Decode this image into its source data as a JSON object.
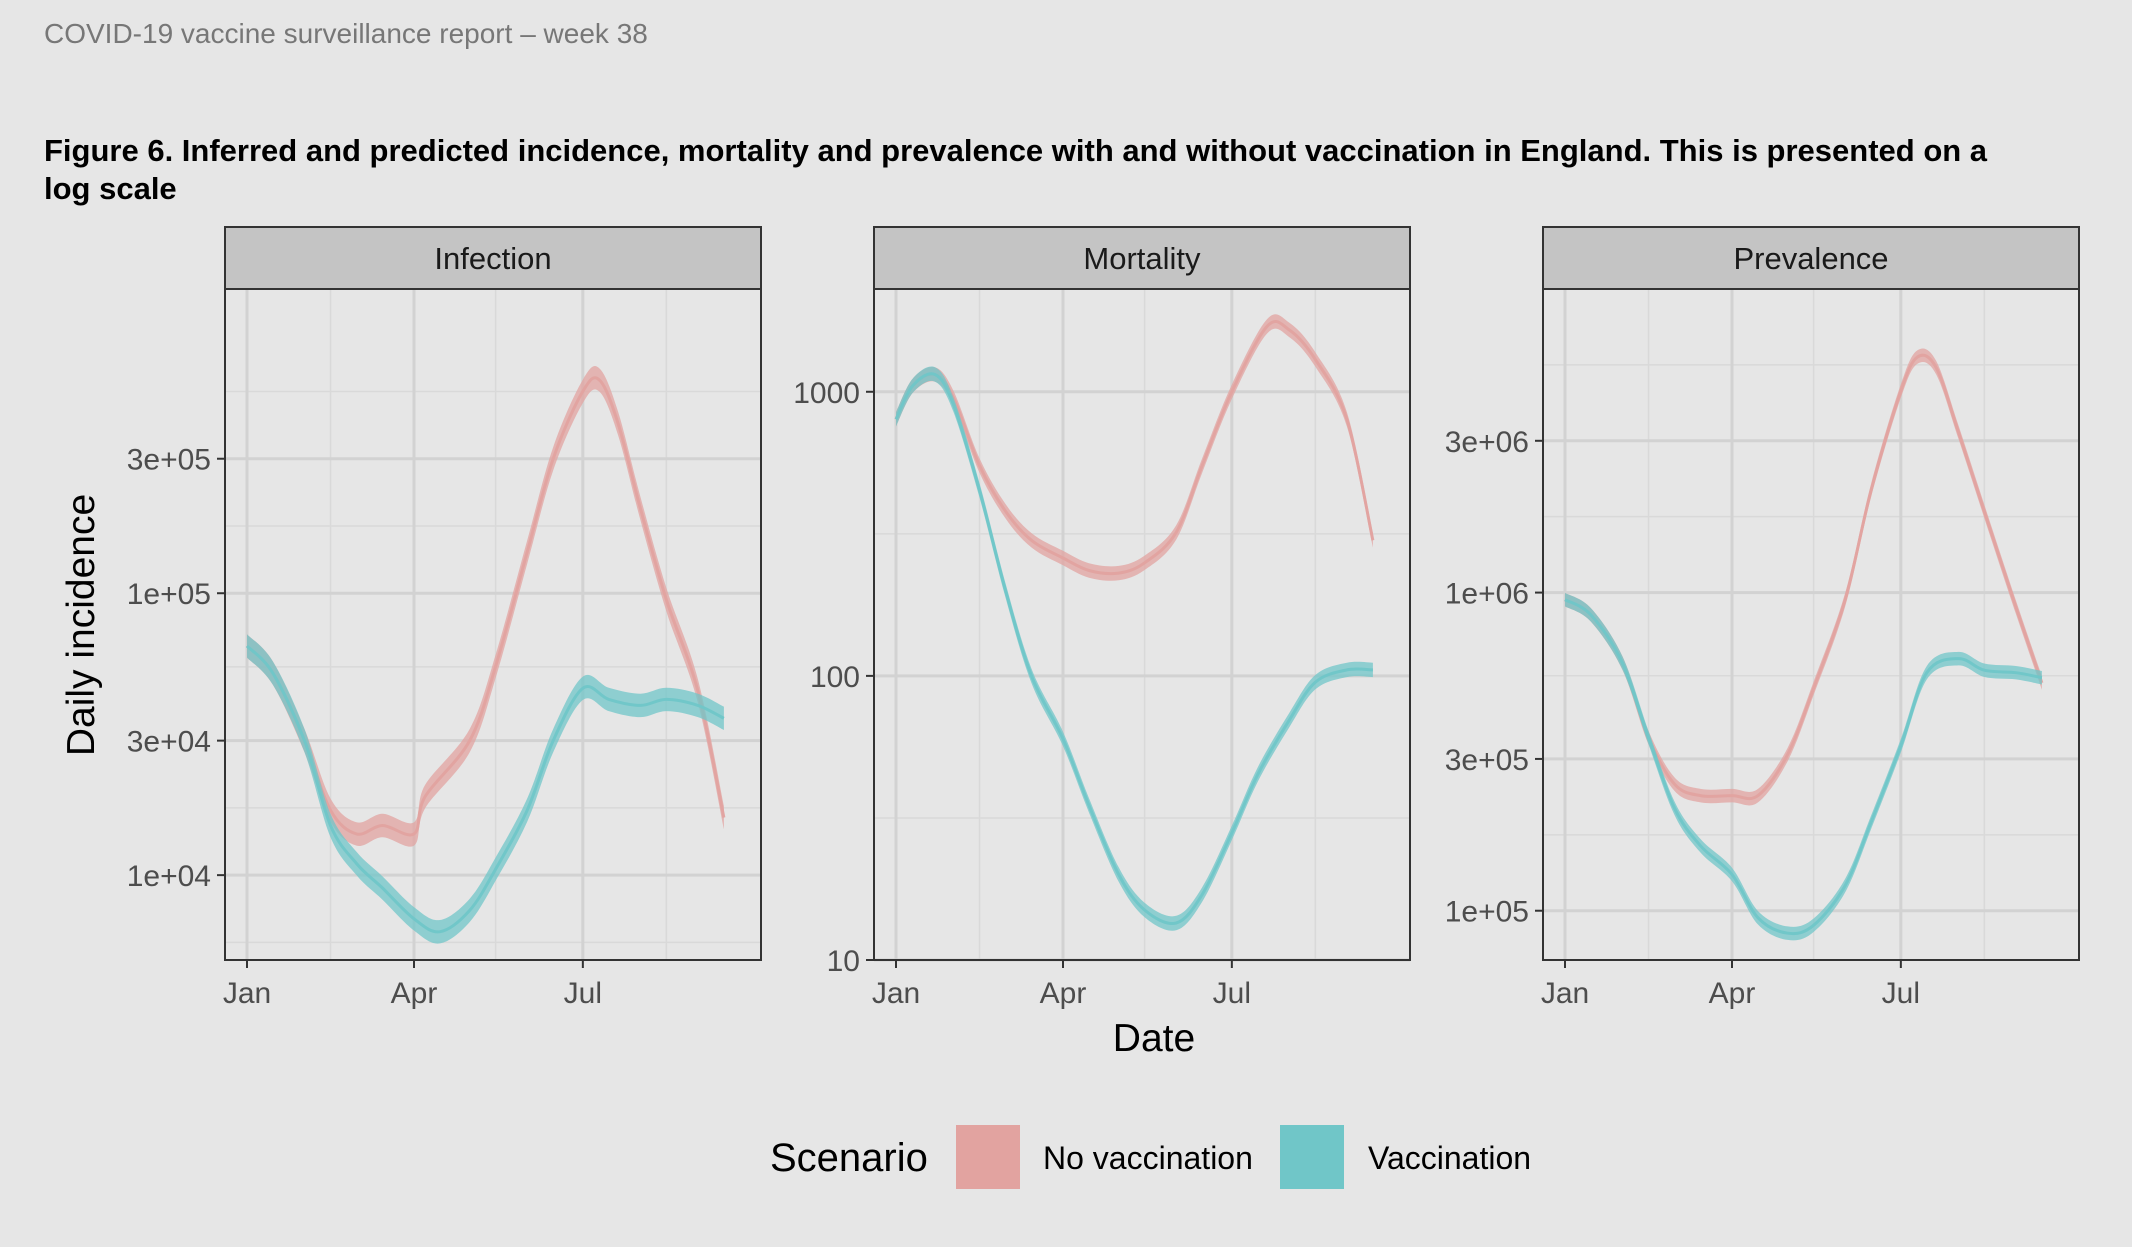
{
  "header": {
    "text": "COVID-19 vaccine surveillance report – week 38"
  },
  "figure": {
    "caption": "Figure 6. Inferred and predicted incidence, mortality and prevalence with and without vaccination in England. This is presented on a log scale"
  },
  "chart_data": {
    "type": "line",
    "facet_by": "measure",
    "x_axis_label": "Date",
    "y_axis_label": "Daily incidence",
    "x_ticks": [
      "Jan",
      "Apr",
      "Jul"
    ],
    "scale_y": "log",
    "grid": true,
    "legend": {
      "title": "Scenario",
      "placement": "bottom",
      "entries": [
        {
          "name": "No vaccination",
          "color": "#e2a3a0"
        },
        {
          "name": "Vaccination",
          "color": "#70c6c8"
        }
      ]
    },
    "panels": [
      {
        "title": "Infection",
        "y_ticks": [
          {
            "value": 10000,
            "label": "1e+04"
          },
          {
            "value": 30000,
            "label": "3e+04"
          },
          {
            "value": 100000,
            "label": "1e+05"
          },
          {
            "value": 300000,
            "label": "3e+05"
          }
        ],
        "ylim": [
          5000,
          1200000
        ],
        "band_width": 1.1,
        "series": [
          {
            "name": "No vaccination",
            "x": [
              "2021-01-01",
              "2021-01-15",
              "2021-02-01",
              "2021-02-15",
              "2021-03-01",
              "2021-03-15",
              "2021-04-01",
              "2021-04-07",
              "2021-05-01",
              "2021-05-15",
              "2021-06-01",
              "2021-06-15",
              "2021-07-01",
              "2021-07-10",
              "2021-07-20",
              "2021-08-01",
              "2021-08-15",
              "2021-09-01",
              "2021-09-15"
            ],
            "y": [
              65000,
              52000,
              30000,
              17000,
              14000,
              15000,
              14000,
              19000,
              30000,
              55000,
              140000,
              300000,
              520000,
              570000,
              400000,
              200000,
              95000,
              45000,
              16000
            ]
          },
          {
            "name": "Vaccination",
            "x": [
              "2021-01-01",
              "2021-01-15",
              "2021-02-01",
              "2021-02-15",
              "2021-03-01",
              "2021-03-15",
              "2021-04-01",
              "2021-04-15",
              "2021-05-01",
              "2021-05-15",
              "2021-06-01",
              "2021-06-15",
              "2021-07-01",
              "2021-07-15",
              "2021-08-01",
              "2021-08-15",
              "2021-09-01",
              "2021-09-15"
            ],
            "y": [
              65000,
              52000,
              30000,
              15000,
              11000,
              9000,
              7000,
              6300,
              7500,
              10500,
              17000,
              30000,
              46000,
              42000,
              40000,
              42000,
              40000,
              36000
            ]
          }
        ]
      },
      {
        "title": "Mortality",
        "y_ticks": [
          {
            "value": 10,
            "label": "10"
          },
          {
            "value": 100,
            "label": "100"
          },
          {
            "value": 1000,
            "label": "1000"
          }
        ],
        "ylim": [
          10,
          2300
        ],
        "band_width": 1.06,
        "series": [
          {
            "name": "No vaccination",
            "x": [
              "2021-01-01",
              "2021-01-10",
              "2021-01-22",
              "2021-02-01",
              "2021-02-15",
              "2021-03-01",
              "2021-03-15",
              "2021-04-01",
              "2021-04-15",
              "2021-05-01",
              "2021-05-15",
              "2021-06-01",
              "2021-06-15",
              "2021-07-01",
              "2021-07-20",
              "2021-08-01",
              "2021-08-15",
              "2021-09-01",
              "2021-09-15"
            ],
            "y": [
              800,
              1050,
              1150,
              950,
              550,
              380,
              300,
              260,
              235,
              230,
              250,
              320,
              550,
              1000,
              1700,
              1650,
              1300,
              800,
              300
            ]
          },
          {
            "name": "Vaccination",
            "x": [
              "2021-01-01",
              "2021-01-10",
              "2021-01-22",
              "2021-02-01",
              "2021-02-15",
              "2021-03-01",
              "2021-03-15",
              "2021-04-01",
              "2021-04-15",
              "2021-05-01",
              "2021-05-15",
              "2021-06-01",
              "2021-06-15",
              "2021-07-01",
              "2021-07-15",
              "2021-08-01",
              "2021-08-15",
              "2021-09-01",
              "2021-09-15"
            ],
            "y": [
              800,
              1050,
              1150,
              900,
              450,
              200,
              100,
              60,
              35,
              20,
              15,
              13.5,
              17,
              28,
              45,
              70,
              95,
              105,
              105
            ]
          }
        ]
      },
      {
        "title": "Prevalence",
        "y_ticks": [
          {
            "value": 100000,
            "label": "1e+05"
          },
          {
            "value": 300000,
            "label": "3e+05"
          },
          {
            "value": 1000000,
            "label": "1e+06"
          },
          {
            "value": 3000000,
            "label": "3e+06"
          }
        ],
        "ylim": [
          70000,
          9000000
        ],
        "band_width": 1.05,
        "series": [
          {
            "name": "No vaccination",
            "x": [
              "2021-01-01",
              "2021-01-15",
              "2021-02-01",
              "2021-02-15",
              "2021-03-01",
              "2021-03-15",
              "2021-04-01",
              "2021-04-15",
              "2021-05-01",
              "2021-05-15",
              "2021-06-01",
              "2021-06-15",
              "2021-07-01",
              "2021-07-10",
              "2021-07-20",
              "2021-08-01",
              "2021-08-15",
              "2021-09-01",
              "2021-09-15"
            ],
            "y": [
              950000,
              850000,
              600000,
              350000,
              250000,
              230000,
              230000,
              230000,
              310000,
              500000,
              950000,
              2100000,
              4300000,
              5500000,
              5100000,
              3200000,
              1800000,
              900000,
              520000
            ]
          },
          {
            "name": "Vaccination",
            "x": [
              "2021-01-01",
              "2021-01-15",
              "2021-02-01",
              "2021-02-15",
              "2021-03-01",
              "2021-03-15",
              "2021-04-01",
              "2021-04-15",
              "2021-05-01",
              "2021-05-15",
              "2021-06-01",
              "2021-06-15",
              "2021-07-01",
              "2021-07-15",
              "2021-08-01",
              "2021-08-15",
              "2021-09-01",
              "2021-09-15"
            ],
            "y": [
              950000,
              850000,
              600000,
              350000,
              210000,
              160000,
              130000,
              95000,
              85000,
              90000,
              120000,
              190000,
              330000,
              560000,
              620000,
              570000,
              560000,
              540000
            ]
          }
        ]
      }
    ]
  }
}
